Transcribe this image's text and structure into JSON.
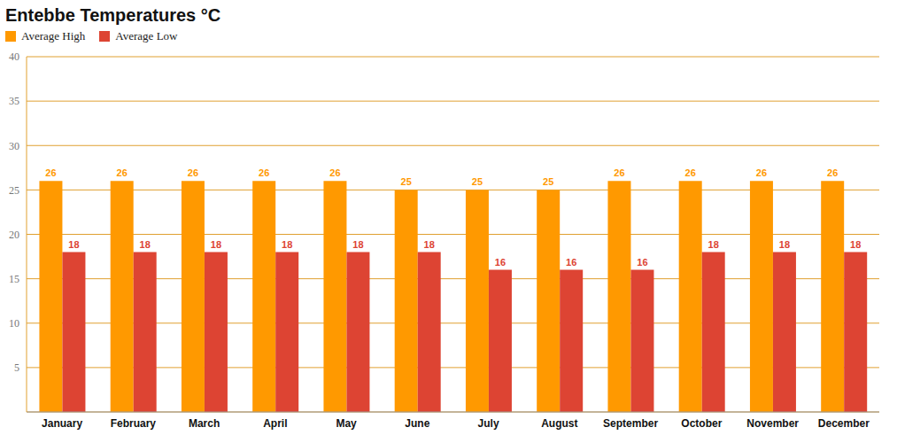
{
  "chart_data": {
    "type": "bar",
    "title": "Entebbe Temperatures °C",
    "categories": [
      "January",
      "February",
      "March",
      "April",
      "May",
      "June",
      "July",
      "August",
      "September",
      "October",
      "November",
      "December"
    ],
    "series": [
      {
        "name": "Average High",
        "color": "#ff9900",
        "values": [
          26,
          26,
          26,
          26,
          26,
          25,
          25,
          25,
          26,
          26,
          26,
          26
        ]
      },
      {
        "name": "Average Low",
        "color": "#dd4433",
        "values": [
          18,
          18,
          18,
          18,
          18,
          18,
          16,
          16,
          16,
          18,
          18,
          18
        ]
      }
    ],
    "ylim": [
      0,
      40
    ],
    "yticks": [
      5,
      10,
      15,
      20,
      25,
      30,
      35,
      40
    ],
    "grid": true,
    "data_labels": true,
    "legend": "top-left"
  }
}
